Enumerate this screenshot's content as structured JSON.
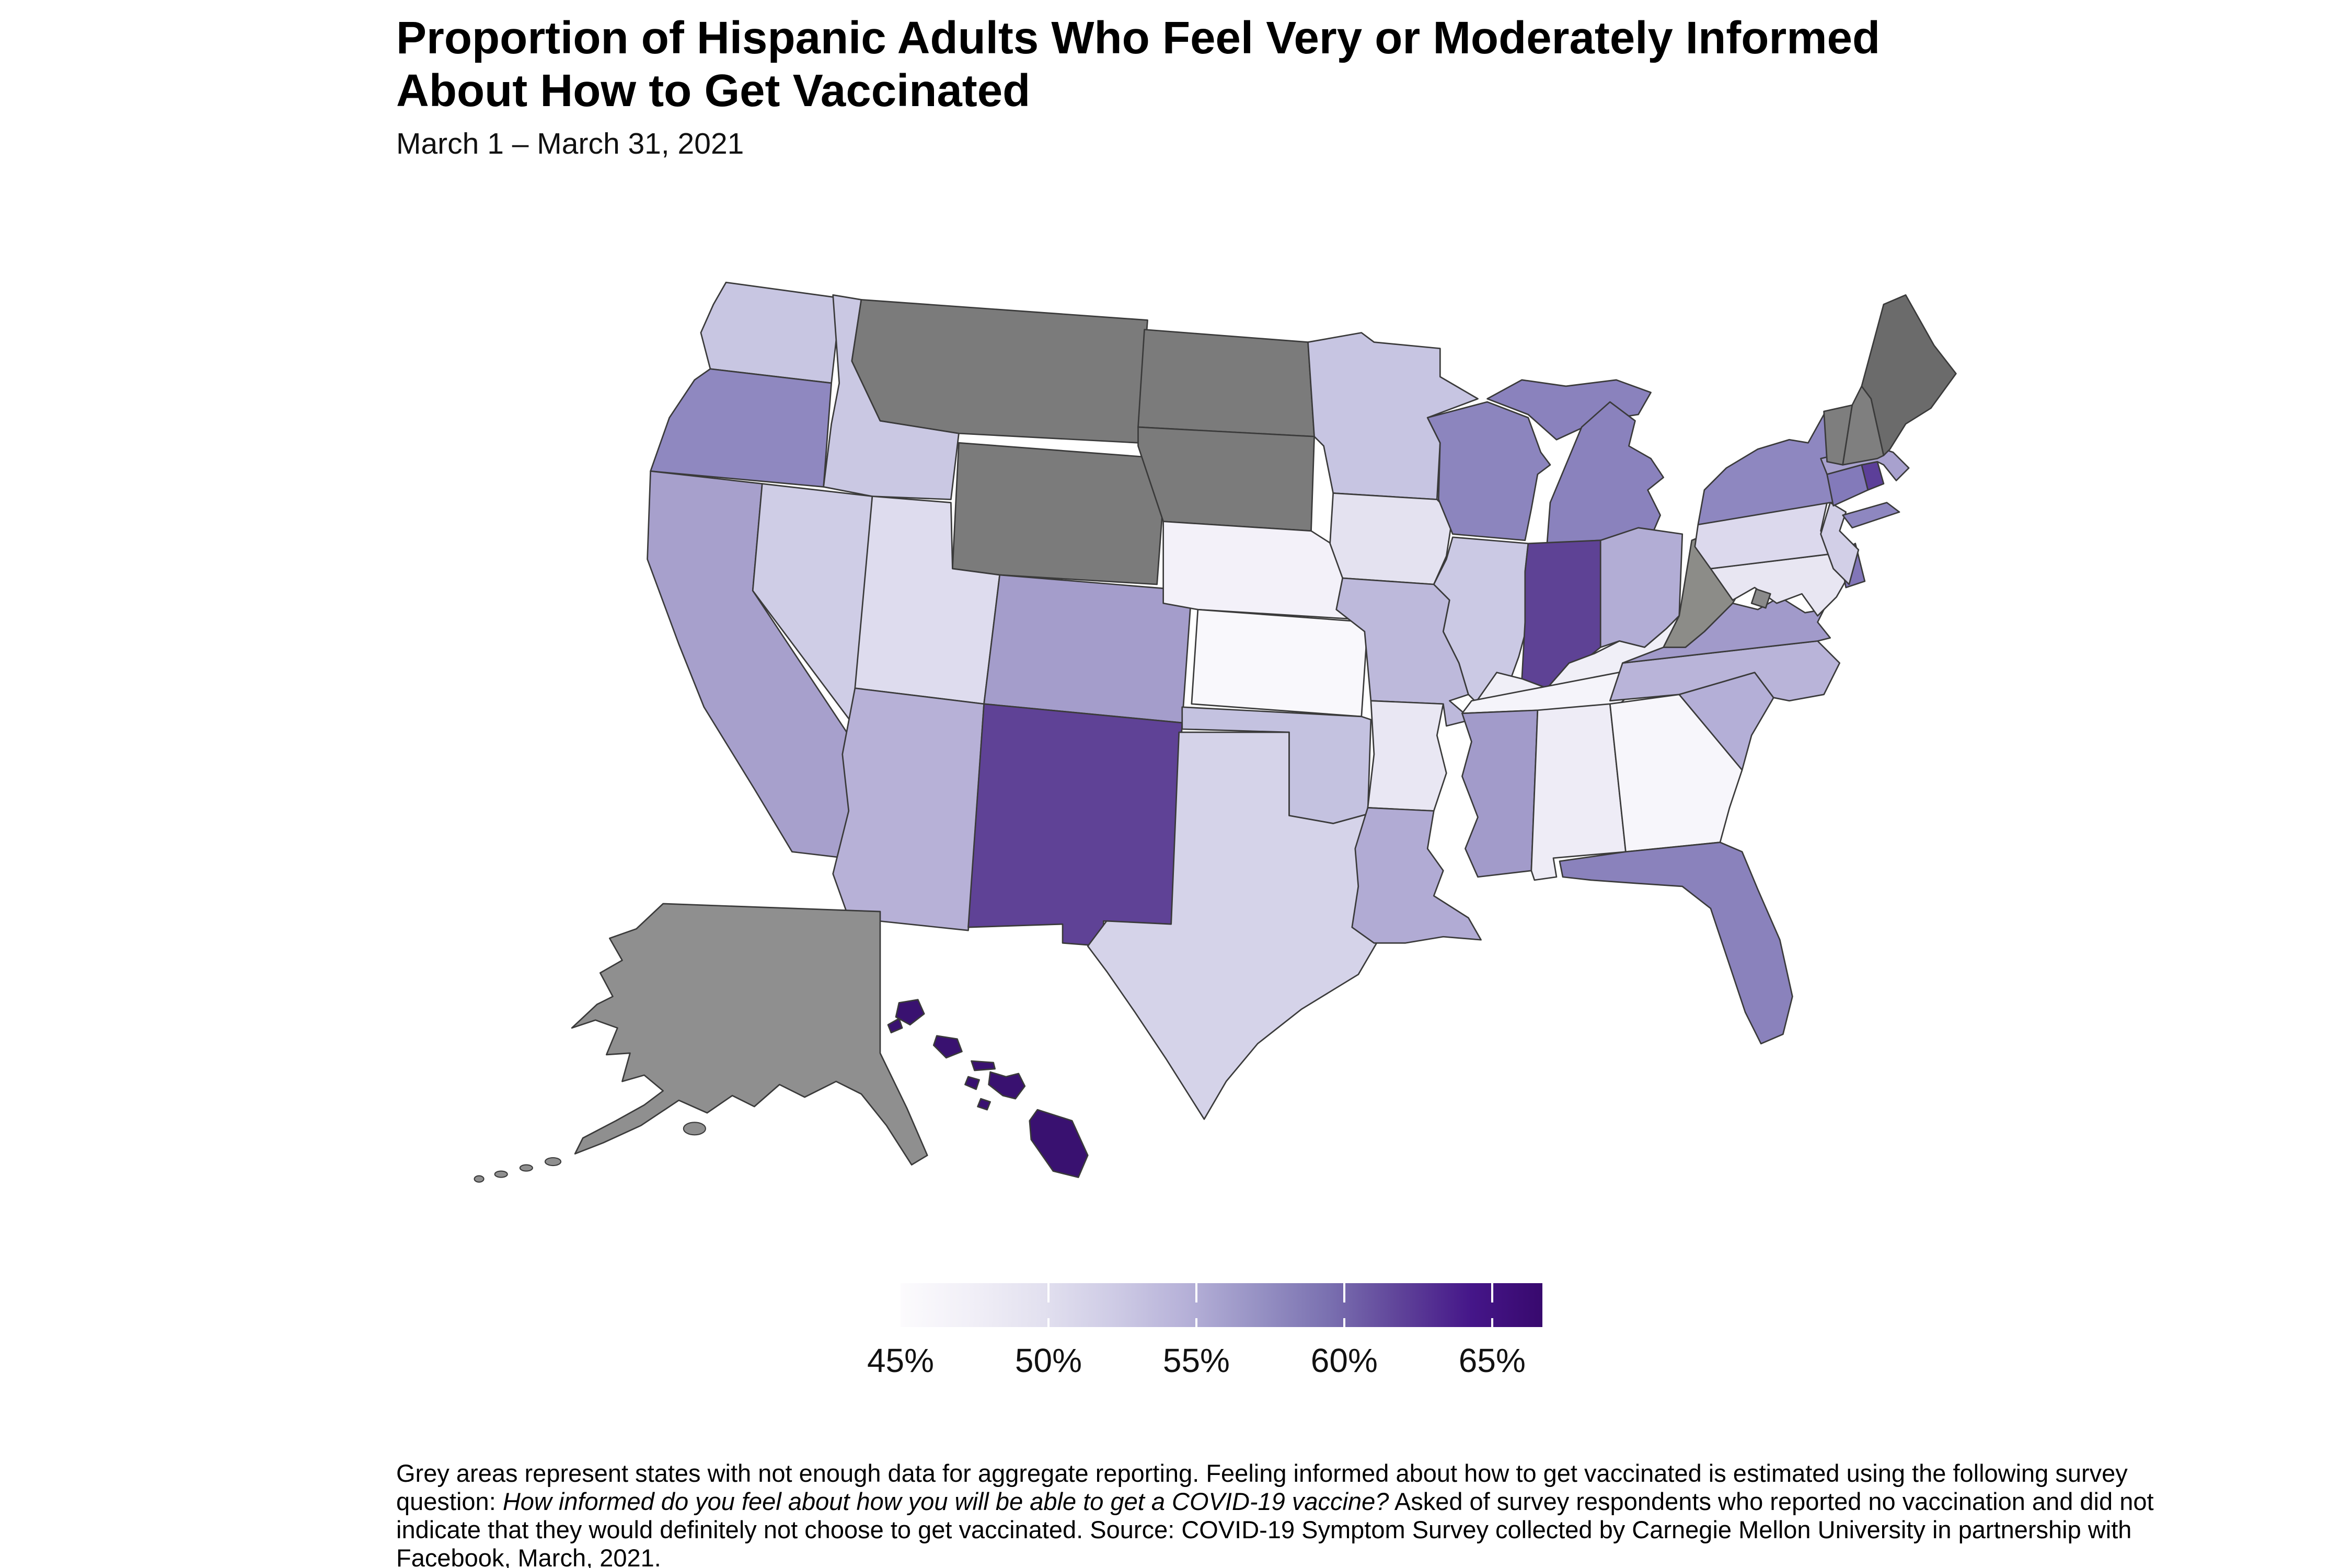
{
  "title": {
    "line1": "Proportion of Hispanic Adults Who Feel Very or Moderately Informed",
    "line2": "About How to Get Vaccinated"
  },
  "subtitle": "March 1 – March 31, 2021",
  "legend": {
    "domain_min": 45,
    "domain_max": 66.7,
    "tick_values": [
      45,
      50,
      55,
      60,
      65
    ],
    "tick_labels": [
      "45%",
      "50%",
      "55%",
      "60%",
      "65%"
    ],
    "gradient_stops": [
      "#fcfbfd",
      "#f1eff7",
      "#e2e0ef",
      "#cecbe5",
      "#b6b1d8",
      "#9792c4",
      "#7a70b0",
      "#5f4399",
      "#451689",
      "#38096e"
    ]
  },
  "footnote": {
    "part1": "Grey areas represent states with not enough data for aggregate reporting. Feeling informed about how to get vaccinated is estimated using the following survey question: ",
    "italic_question": "How informed do you feel about how you will be able to get a COVID-19 vaccine?",
    "part2": " Asked of survey respondents who reported no vaccination and did not indicate that they would definitely not choose to get vaccinated. Source: COVID-19 Symptom Survey collected by Carnegie Mellon University in partnership with Facebook, March, 2021."
  },
  "colors": {
    "background": "#ffffff",
    "state_border": "#3a3a3a",
    "no_data_grey": "#7b7b7b"
  },
  "chart_data": {
    "type": "choropleth_map",
    "region": "United States (states, Albers-style layout with Alaska and Hawaii insets)",
    "metric": "Percent of Hispanic adults who feel very or moderately informed about how to get vaccinated",
    "unit": "%",
    "value_note": "Values estimated from the color scale; grey states have no_data = true",
    "states": [
      {
        "abbr": "AL",
        "name": "Alabama",
        "value": 47.5,
        "color": "#eeecf6",
        "no_data": false
      },
      {
        "abbr": "AK",
        "name": "Alaska",
        "value": null,
        "color": "#8f8f8f",
        "no_data": true
      },
      {
        "abbr": "AZ",
        "name": "Arizona",
        "value": 53.5,
        "color": "#b7b1d7",
        "no_data": false
      },
      {
        "abbr": "AR",
        "name": "Arkansas",
        "value": 47.5,
        "color": "#e9e7f3",
        "no_data": false
      },
      {
        "abbr": "CA",
        "name": "California",
        "value": 54.5,
        "color": "#a7a0cc",
        "no_data": false
      },
      {
        "abbr": "CO",
        "name": "Colorado",
        "value": 54.5,
        "color": "#a49dcb",
        "no_data": false
      },
      {
        "abbr": "CT",
        "name": "Connecticut",
        "value": 58,
        "color": "#837aba",
        "no_data": false
      },
      {
        "abbr": "DE",
        "name": "Delaware",
        "value": 57.5,
        "color": "#8276b8",
        "no_data": false
      },
      {
        "abbr": "DC",
        "name": "District of Columbia",
        "value": null,
        "color": "#8a8a8a",
        "no_data": true
      },
      {
        "abbr": "FL",
        "name": "Florida",
        "value": 57,
        "color": "#8a82bc",
        "no_data": false
      },
      {
        "abbr": "GA",
        "name": "Georgia",
        "value": 45.5,
        "color": "#f7f6fb",
        "no_data": false
      },
      {
        "abbr": "HI",
        "name": "Hawaii",
        "value": 66,
        "color": "#391170",
        "no_data": false
      },
      {
        "abbr": "ID",
        "name": "Idaho",
        "value": 51,
        "color": "#cac8e3",
        "no_data": false
      },
      {
        "abbr": "IL",
        "name": "Illinois",
        "value": 51.5,
        "color": "#cbc9e4",
        "no_data": false
      },
      {
        "abbr": "IN",
        "name": "Indiana",
        "value": 61.5,
        "color": "#5e4295",
        "no_data": false
      },
      {
        "abbr": "IA",
        "name": "Iowa",
        "value": 48,
        "color": "#e4e2f0",
        "no_data": false
      },
      {
        "abbr": "KS",
        "name": "Kansas",
        "value": 45,
        "color": "#f9f8fc",
        "no_data": false
      },
      {
        "abbr": "KY",
        "name": "Kentucky",
        "value": 47,
        "color": "#f0eff7",
        "no_data": false
      },
      {
        "abbr": "LA",
        "name": "Louisiana",
        "value": 53.5,
        "color": "#b1abd4",
        "no_data": false
      },
      {
        "abbr": "ME",
        "name": "Maine",
        "value": null,
        "color": "#6b6b6b",
        "no_data": true
      },
      {
        "abbr": "MD",
        "name": "Maryland",
        "value": 47.5,
        "color": "#e8e6f2",
        "no_data": false
      },
      {
        "abbr": "MA",
        "name": "Massachusetts",
        "value": 54,
        "color": "#a8a1ce",
        "no_data": false
      },
      {
        "abbr": "MI",
        "name": "Michigan",
        "value": 57,
        "color": "#8a82bd",
        "no_data": false
      },
      {
        "abbr": "MN",
        "name": "Minnesota",
        "value": 51.5,
        "color": "#c7c5e2",
        "no_data": false
      },
      {
        "abbr": "MS",
        "name": "Mississippi",
        "value": 54.5,
        "color": "#a29bca",
        "no_data": false
      },
      {
        "abbr": "MO",
        "name": "Missouri",
        "value": 52.5,
        "color": "#bdb9db",
        "no_data": false
      },
      {
        "abbr": "MT",
        "name": "Montana",
        "value": null,
        "color": "#7b7b7b",
        "no_data": true
      },
      {
        "abbr": "NE",
        "name": "Nebraska",
        "value": 46.5,
        "color": "#f3f1f9",
        "no_data": false
      },
      {
        "abbr": "NV",
        "name": "Nevada",
        "value": 50.5,
        "color": "#cfcde6",
        "no_data": false
      },
      {
        "abbr": "NH",
        "name": "New Hampshire",
        "value": null,
        "color": "#7f7f7f",
        "no_data": true
      },
      {
        "abbr": "NJ",
        "name": "New Jersey",
        "value": 50,
        "color": "#d2cfe7",
        "no_data": false
      },
      {
        "abbr": "NM",
        "name": "New Mexico",
        "value": 60.5,
        "color": "#5f4296",
        "no_data": false
      },
      {
        "abbr": "NY",
        "name": "New York",
        "value": 56.5,
        "color": "#8e87c0",
        "no_data": false
      },
      {
        "abbr": "NC",
        "name": "North Carolina",
        "value": 53,
        "color": "#b9b4d9",
        "no_data": false
      },
      {
        "abbr": "ND",
        "name": "North Dakota",
        "value": null,
        "color": "#7b7b7b",
        "no_data": true
      },
      {
        "abbr": "OH",
        "name": "Ohio",
        "value": 53.5,
        "color": "#b2add5",
        "no_data": false
      },
      {
        "abbr": "OK",
        "name": "Oklahoma",
        "value": 51.5,
        "color": "#c4c2e0",
        "no_data": false
      },
      {
        "abbr": "OR",
        "name": "Oregon",
        "value": 56.5,
        "color": "#8f88c0",
        "no_data": false
      },
      {
        "abbr": "PA",
        "name": "Pennsylvania",
        "value": 49.5,
        "color": "#dcd9ed",
        "no_data": false
      },
      {
        "abbr": "RI",
        "name": "Rhode Island",
        "value": 61,
        "color": "#5c3f99",
        "no_data": false
      },
      {
        "abbr": "SC",
        "name": "South Carolina",
        "value": 53.5,
        "color": "#b4afd7",
        "no_data": false
      },
      {
        "abbr": "SD",
        "name": "South Dakota",
        "value": null,
        "color": "#7b7b7b",
        "no_data": true
      },
      {
        "abbr": "TN",
        "name": "Tennessee",
        "value": 46,
        "color": "#f5f4fa",
        "no_data": false
      },
      {
        "abbr": "TX",
        "name": "Texas",
        "value": 50,
        "color": "#d5d3e9",
        "no_data": false
      },
      {
        "abbr": "UT",
        "name": "Utah",
        "value": 48.5,
        "color": "#dedcee",
        "no_data": false
      },
      {
        "abbr": "VT",
        "name": "Vermont",
        "value": null,
        "color": "#7e7e7e",
        "no_data": true
      },
      {
        "abbr": "VA",
        "name": "Virginia",
        "value": 54.5,
        "color": "#a19aca",
        "no_data": false
      },
      {
        "abbr": "WA",
        "name": "Washington",
        "value": 51,
        "color": "#c8c6e2",
        "no_data": false
      },
      {
        "abbr": "WV",
        "name": "West Virginia",
        "value": null,
        "color": "#8c8c88",
        "no_data": true
      },
      {
        "abbr": "WI",
        "name": "Wisconsin",
        "value": 57,
        "color": "#8c85be",
        "no_data": false
      },
      {
        "abbr": "WY",
        "name": "Wyoming",
        "value": null,
        "color": "#7b7b7b",
        "no_data": true
      }
    ]
  }
}
